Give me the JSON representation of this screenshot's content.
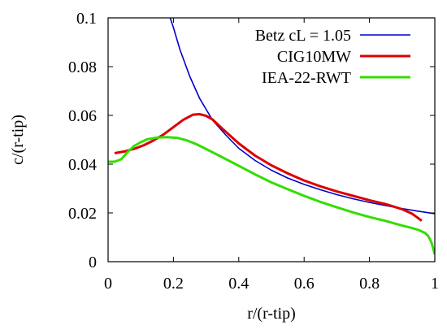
{
  "chart_data": {
    "type": "line",
    "title": "",
    "xlabel": "r/(r-tip)",
    "ylabel": "c/(r-tip)",
    "xlim": [
      0,
      1
    ],
    "ylim": [
      0,
      0.1
    ],
    "x_ticks": [
      "0",
      "0.2",
      "0.4",
      "0.6",
      "0.8",
      "1"
    ],
    "y_ticks": [
      "0",
      "0.02",
      "0.04",
      "0.06",
      "0.08",
      "0.1"
    ],
    "grid": false,
    "legend_position": "top-right",
    "series": [
      {
        "name": "Betz cL = 1.05",
        "color": "#0000cc",
        "x": [
          0.19,
          0.2,
          0.22,
          0.25,
          0.28,
          0.32,
          0.36,
          0.4,
          0.45,
          0.5,
          0.55,
          0.6,
          0.65,
          0.7,
          0.75,
          0.8,
          0.85,
          0.9,
          0.95,
          1.0
        ],
        "y": [
          0.1,
          0.096,
          0.087,
          0.076,
          0.067,
          0.058,
          0.052,
          0.0465,
          0.0415,
          0.0375,
          0.0343,
          0.0317,
          0.0295,
          0.0275,
          0.0258,
          0.0243,
          0.023,
          0.0218,
          0.0207,
          0.0197
        ]
      },
      {
        "name": "CIG10MW",
        "color": "#dd0000",
        "x": [
          0.02,
          0.05,
          0.08,
          0.11,
          0.14,
          0.17,
          0.2,
          0.23,
          0.26,
          0.28,
          0.3,
          0.32,
          0.35,
          0.4,
          0.45,
          0.5,
          0.55,
          0.6,
          0.65,
          0.7,
          0.75,
          0.8,
          0.85,
          0.9,
          0.93,
          0.96
        ],
        "y": [
          0.0445,
          0.0452,
          0.0463,
          0.0478,
          0.0498,
          0.0522,
          0.0552,
          0.0582,
          0.0603,
          0.0605,
          0.0598,
          0.0583,
          0.0545,
          0.0485,
          0.0435,
          0.0395,
          0.0362,
          0.0333,
          0.0309,
          0.0288,
          0.027,
          0.0252,
          0.0236,
          0.0215,
          0.0197,
          0.0168
        ]
      },
      {
        "name": "IEA-22-RWT",
        "color": "#33dd00",
        "x": [
          0.0,
          0.02,
          0.04,
          0.06,
          0.08,
          0.1,
          0.12,
          0.15,
          0.18,
          0.21,
          0.24,
          0.27,
          0.3,
          0.35,
          0.4,
          0.45,
          0.5,
          0.55,
          0.6,
          0.65,
          0.7,
          0.75,
          0.8,
          0.85,
          0.9,
          0.93,
          0.95,
          0.97,
          0.98,
          0.99,
          1.0
        ],
        "y": [
          0.041,
          0.041,
          0.042,
          0.045,
          0.0475,
          0.049,
          0.0502,
          0.0509,
          0.0511,
          0.0508,
          0.0498,
          0.0482,
          0.0462,
          0.0428,
          0.0393,
          0.0358,
          0.0325,
          0.0297,
          0.027,
          0.0245,
          0.0223,
          0.0202,
          0.0183,
          0.0167,
          0.0148,
          0.0138,
          0.013,
          0.0118,
          0.0105,
          0.0078,
          0.003
        ]
      }
    ]
  }
}
